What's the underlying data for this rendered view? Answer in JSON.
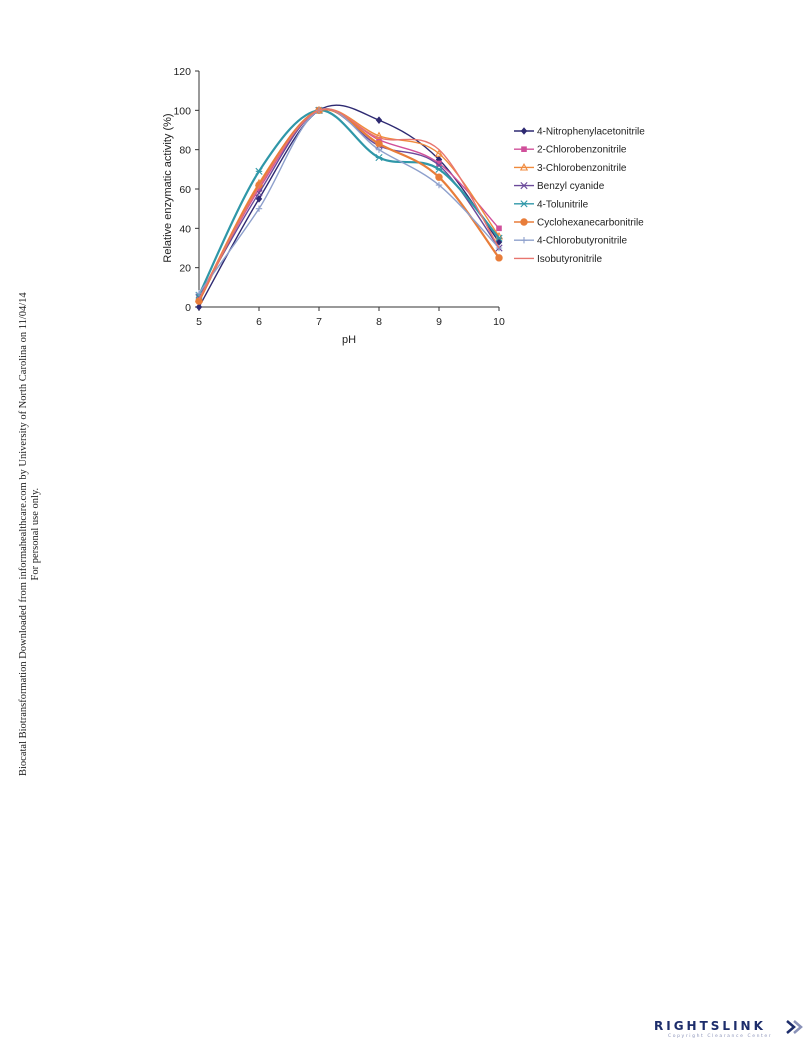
{
  "chart_data": {
    "type": "line",
    "xlabel": "pH",
    "ylabel": "Relative enzymatic activity (%)",
    "x": [
      5,
      6,
      7,
      8,
      9,
      10
    ],
    "xlim": [
      5,
      10
    ],
    "ylim": [
      0,
      120
    ],
    "yticks": [
      0,
      20,
      40,
      60,
      80,
      100,
      120
    ],
    "xticks": [
      5,
      6,
      7,
      8,
      9,
      10
    ],
    "grid": false,
    "legend": "right",
    "series": [
      {
        "name": "4-Nitrophenylacetonitrile",
        "values": [
          0,
          55,
          100,
          95,
          75,
          33
        ],
        "color": "#2e2a72",
        "marker": "diamond"
      },
      {
        "name": "2-Chlorobenzonitrile",
        "values": [
          5,
          60,
          100,
          85,
          73,
          40
        ],
        "color": "#d04f9a",
        "marker": "square"
      },
      {
        "name": "3-Chlorobenzonitrile",
        "values": [
          4,
          63,
          100,
          87,
          78,
          36
        ],
        "color": "#f08a3c",
        "marker": "triangle"
      },
      {
        "name": "Benzyl cyanide",
        "values": [
          5,
          58,
          100,
          82,
          72,
          30
        ],
        "color": "#6b4a9a",
        "marker": "x"
      },
      {
        "name": "4-Tolunitrile",
        "values": [
          6,
          69,
          100,
          76,
          70,
          35
        ],
        "color": "#2f97a8",
        "marker": "star"
      },
      {
        "name": "Cyclohexanecarbonitrile",
        "values": [
          3,
          62,
          100,
          83,
          66,
          25
        ],
        "color": "#e87d3a",
        "marker": "circle"
      },
      {
        "name": "4-Chlorobutyronitrile",
        "values": [
          7,
          50,
          100,
          80,
          62,
          30
        ],
        "color": "#8ea0cc",
        "marker": "plus"
      },
      {
        "name": "Isobutyronitrile",
        "values": [
          4,
          61,
          100,
          86,
          80,
          30
        ],
        "color": "#e8756f",
        "marker": "none"
      }
    ]
  },
  "side_note": {
    "line1": "Biocatal Biotransformation Downloaded from informahealthcare.com by University of North Carolina on 11/04/14",
    "line2": "For personal use only."
  },
  "footer": {
    "logo_main": "RIGHTSLINK",
    "logo_sub": "Copyright Clearance Center"
  }
}
